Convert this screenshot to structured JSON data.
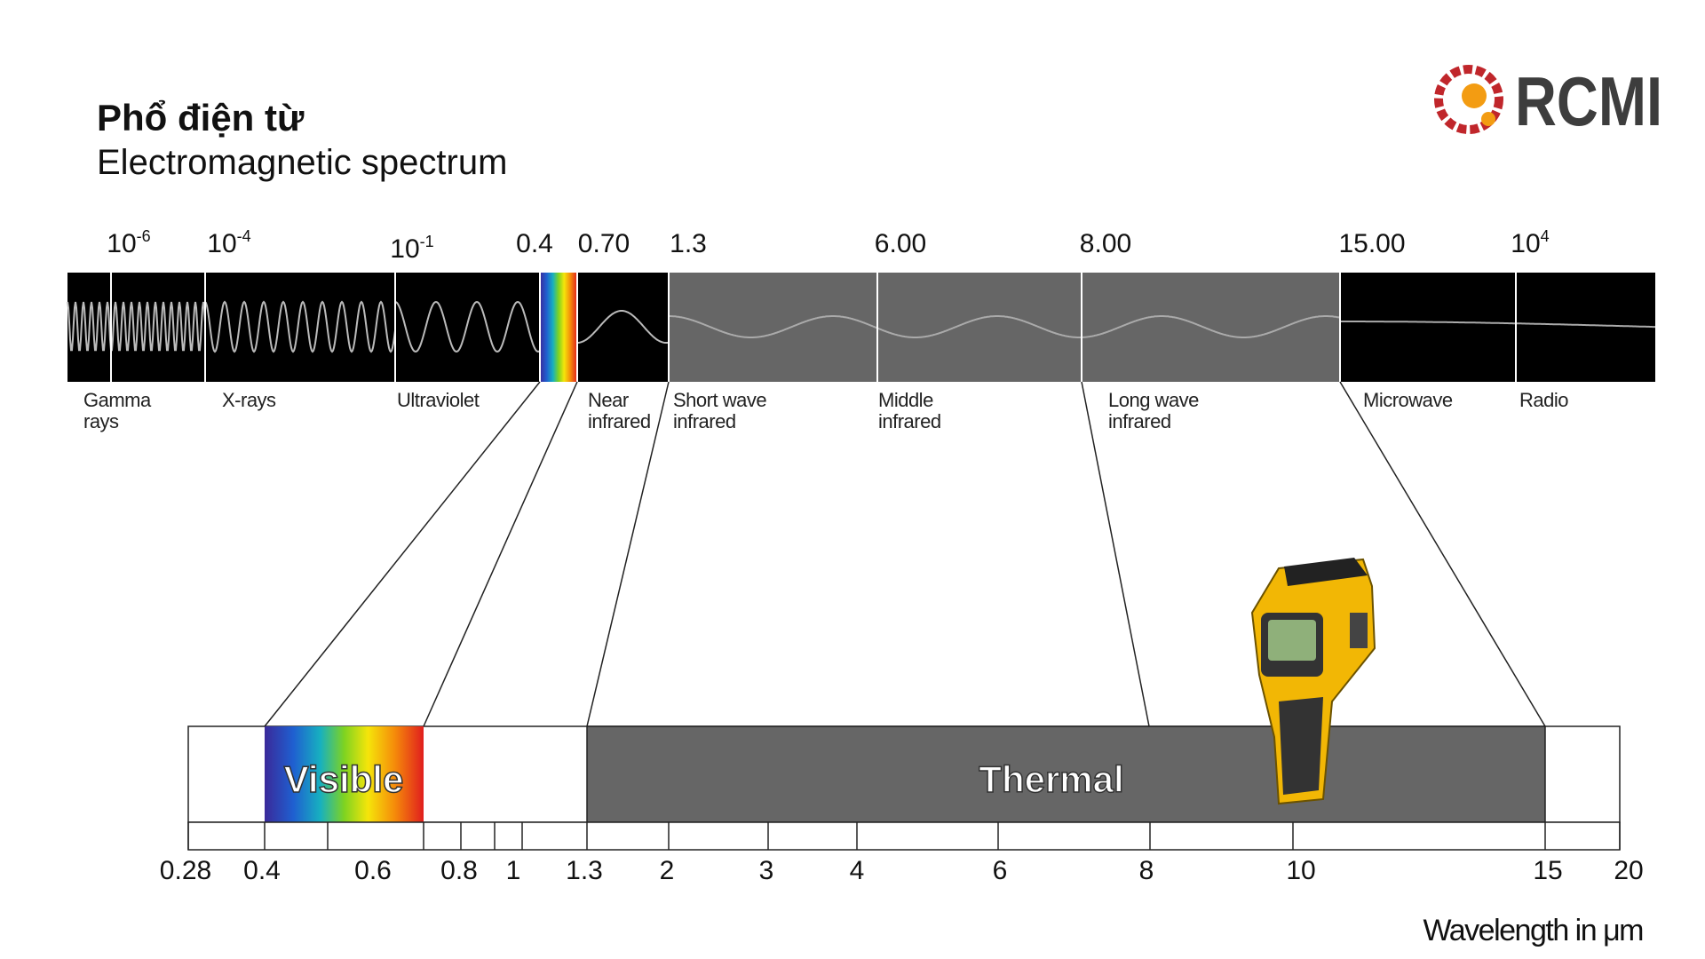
{
  "header": {
    "title": "Phổ điện từ",
    "subtitle": "Electromagnetic spectrum",
    "logo": "RCMI"
  },
  "top_scale": [
    {
      "label": "10",
      "exponent": "-6"
    },
    {
      "label": "10",
      "exponent": "-4"
    },
    {
      "label": "10",
      "exponent": "-1"
    },
    {
      "label": "0.4"
    },
    {
      "label": "0.70"
    },
    {
      "label": "1.3"
    },
    {
      "label": "6.00"
    },
    {
      "label": "8.00"
    },
    {
      "label": "15.00"
    },
    {
      "label": "10",
      "exponent": "4"
    }
  ],
  "bands": [
    [
      "Gamma",
      "rays"
    ],
    [
      "X-rays"
    ],
    [
      "Ultraviolet"
    ],
    [
      "Near",
      "infrared"
    ],
    [
      "Short wave",
      "infrared"
    ],
    [
      "Middle",
      "infrared"
    ],
    [
      "Long wave",
      "infrared"
    ],
    [
      "Microwave"
    ],
    [
      "Radio"
    ]
  ],
  "regions": {
    "visible": "Visible",
    "thermal": "Thermal"
  },
  "bottom_scale": [
    "0.28",
    "0.4",
    "0.6",
    "0.8",
    "1",
    "1.3",
    "2",
    "3",
    "4",
    "6",
    "8",
    "10",
    "15",
    "20"
  ],
  "axis_label": "Wavelength in μm"
}
